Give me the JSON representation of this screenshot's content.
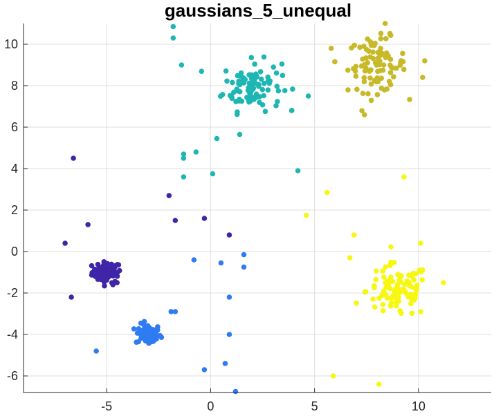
{
  "chart_data": {
    "type": "scatter",
    "title": "gaussians_5_unequal",
    "xlabel": "",
    "ylabel": "",
    "xlim": [
      -9,
      13.5
    ],
    "ylim": [
      -6.8,
      11
    ],
    "xticks": [
      -5,
      0,
      5,
      10
    ],
    "yticks": [
      -6,
      -4,
      -2,
      0,
      2,
      4,
      6,
      8,
      10
    ],
    "xtick_labels": [
      "-5",
      "0",
      "5",
      "10"
    ],
    "ytick_labels": [
      "-6",
      "-4",
      "-2",
      "0",
      "2",
      "4",
      "6",
      "8",
      "10"
    ],
    "grid": true,
    "series": [
      {
        "color": "#3f25a8",
        "center": [
          -5,
          -1
        ],
        "spread": [
          0.35,
          0.25
        ],
        "core_count": 70,
        "points": [
          [
            -6.6,
            4.5
          ],
          [
            -5.9,
            1.3
          ],
          [
            -7.0,
            0.4
          ],
          [
            -6.7,
            -2.2
          ],
          [
            -2.0,
            2.7
          ],
          [
            -1.7,
            1.5
          ],
          [
            -0.3,
            1.6
          ],
          [
            0.9,
            0.8
          ],
          [
            -4.5,
            -1.5
          ],
          [
            -4.7,
            -1.6
          ]
        ]
      },
      {
        "color": "#2f7bf2",
        "center": [
          -3,
          -4
        ],
        "spread": [
          0.3,
          0.25
        ],
        "core_count": 70,
        "points": [
          [
            -5.5,
            -4.8
          ],
          [
            -1.9,
            -2.9
          ],
          [
            -1.7,
            -2.9
          ],
          [
            -0.8,
            -0.4
          ],
          [
            0.5,
            -0.55
          ],
          [
            1.6,
            -0.15
          ],
          [
            1.6,
            -0.75
          ],
          [
            0.9,
            -2.2
          ],
          [
            0.9,
            -4.0
          ],
          [
            0.7,
            -5.4
          ],
          [
            -0.3,
            -5.7
          ],
          [
            1.2,
            -6.75
          ]
        ]
      },
      {
        "color": "#1db6b4",
        "center": [
          2,
          8
        ],
        "spread": [
          0.7,
          0.6
        ],
        "core_count": 100,
        "points": [
          [
            -1.8,
            10.85
          ],
          [
            -1.8,
            10.3
          ],
          [
            -1.4,
            9.0
          ],
          [
            -1.3,
            4.7
          ],
          [
            -1.3,
            4.5
          ],
          [
            -0.7,
            4.8
          ],
          [
            -1.3,
            3.6
          ],
          [
            0.1,
            3.75
          ],
          [
            0.3,
            5.45
          ],
          [
            1.4,
            5.65
          ],
          [
            4.2,
            3.9
          ],
          [
            4.7,
            7.5
          ],
          [
            3.9,
            6.8
          ]
        ]
      },
      {
        "color": "#c7b928",
        "center": [
          8,
          9
        ],
        "spread": [
          0.7,
          0.65
        ],
        "core_count": 90,
        "points": [
          [
            5.8,
            9.8
          ],
          [
            7.4,
            6.6
          ],
          [
            8.4,
            11.0
          ],
          [
            10.2,
            8.4
          ],
          [
            10.3,
            9.2
          ]
        ]
      },
      {
        "color": "#f7f711",
        "center": [
          9,
          -1.9
        ],
        "spread": [
          0.75,
          0.65
        ],
        "core_count": 100,
        "points": [
          [
            5.6,
            2.85
          ],
          [
            4.6,
            1.75
          ],
          [
            9.3,
            3.6
          ],
          [
            6.9,
            0.8
          ],
          [
            10.1,
            0.4
          ],
          [
            5.9,
            -6.0
          ],
          [
            8.1,
            -6.4
          ],
          [
            6.7,
            -0.3
          ],
          [
            11.2,
            -1.5
          ]
        ]
      }
    ]
  }
}
